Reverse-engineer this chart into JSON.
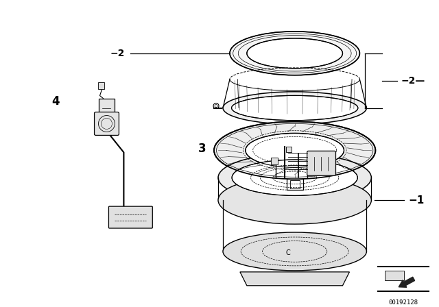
{
  "bg_color": "#ffffff",
  "line_color": "#000000",
  "fig_width": 6.4,
  "fig_height": 4.48,
  "dpi": 100,
  "watermark_text": "00192128",
  "lw": 0.9
}
